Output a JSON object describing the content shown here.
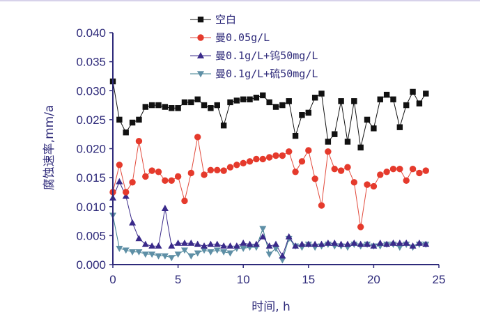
{
  "colors": {
    "axis": "#2e2a7a",
    "text": "#2e2a7a",
    "top_border": "#d7d2ea"
  },
  "chart_data": {
    "type": "line",
    "title": "",
    "xlabel": "时间, h",
    "ylabel": "腐蚀速率,mm/a",
    "xlim": [
      0,
      25
    ],
    "ylim": [
      0,
      0.04
    ],
    "x_ticks": [
      0,
      5,
      10,
      15,
      20,
      25
    ],
    "y_ticks": [
      0.0,
      0.005,
      0.01,
      0.015,
      0.02,
      0.025,
      0.03,
      0.035,
      0.04
    ],
    "x_tick_labels": [
      "0",
      "5",
      "10",
      "15",
      "20",
      "25"
    ],
    "y_tick_labels": [
      "0.000",
      "0.005",
      "0.010",
      "0.015",
      "0.020",
      "0.025",
      "0.030",
      "0.035",
      "0.040"
    ],
    "grid": false,
    "legend_position": "top-center",
    "series": [
      {
        "name": "空白",
        "marker": "square",
        "color": "#111111",
        "marker_color": "#111111",
        "x": [
          0,
          0.5,
          1,
          1.5,
          2,
          2.5,
          3,
          3.5,
          4,
          4.5,
          5,
          5.5,
          6,
          6.5,
          7,
          7.5,
          8,
          8.5,
          9,
          9.5,
          10,
          10.5,
          11,
          11.5,
          12,
          12.5,
          13,
          13.5,
          14,
          14.5,
          15,
          15.5,
          16,
          16.5,
          17,
          17.5,
          18,
          18.5,
          19,
          19.5,
          20,
          20.5,
          21,
          21.5,
          22,
          22.5,
          23,
          23.5,
          24
        ],
        "y": [
          0.0316,
          0.025,
          0.0228,
          0.0245,
          0.025,
          0.0272,
          0.0275,
          0.0275,
          0.0272,
          0.027,
          0.027,
          0.028,
          0.028,
          0.0285,
          0.0275,
          0.027,
          0.0275,
          0.024,
          0.028,
          0.0283,
          0.0285,
          0.0285,
          0.0288,
          0.0292,
          0.028,
          0.0272,
          0.0275,
          0.0282,
          0.0222,
          0.0258,
          0.0262,
          0.0288,
          0.0295,
          0.0212,
          0.0225,
          0.0282,
          0.0212,
          0.0282,
          0.0202,
          0.025,
          0.0235,
          0.0285,
          0.0293,
          0.0285,
          0.0237,
          0.0275,
          0.0298,
          0.0278,
          0.0295
        ]
      },
      {
        "name": "曼0.05g/L",
        "marker": "circle",
        "color": "#e24a3c",
        "marker_color": "#e53a2c",
        "x": [
          0,
          0.5,
          1,
          1.5,
          2,
          2.5,
          3,
          3.5,
          4,
          4.5,
          5,
          5.5,
          6,
          6.5,
          7,
          7.5,
          8,
          8.5,
          9,
          9.5,
          10,
          10.5,
          11,
          11.5,
          12,
          12.5,
          13,
          13.5,
          14,
          14.5,
          15,
          15.5,
          16,
          16.5,
          17,
          17.5,
          18,
          18.5,
          19,
          19.5,
          20,
          20.5,
          21,
          21.5,
          22,
          22.5,
          23,
          23.5,
          24
        ],
        "y": [
          0.0125,
          0.0172,
          0.0125,
          0.0142,
          0.0213,
          0.0152,
          0.0162,
          0.016,
          0.0145,
          0.0145,
          0.0152,
          0.011,
          0.0158,
          0.022,
          0.0155,
          0.0163,
          0.0163,
          0.0162,
          0.0168,
          0.0172,
          0.0175,
          0.0178,
          0.0182,
          0.0182,
          0.0185,
          0.0188,
          0.0188,
          0.0195,
          0.016,
          0.0178,
          0.0197,
          0.0148,
          0.0102,
          0.0195,
          0.0165,
          0.0162,
          0.0168,
          0.0142,
          0.0065,
          0.0138,
          0.0135,
          0.0155,
          0.016,
          0.0165,
          0.0165,
          0.0145,
          0.0165,
          0.0158,
          0.0162
        ]
      },
      {
        "name": "曼0.1g/L+钨50mg/L",
        "marker": "triangle-up",
        "color": "#3a2a8a",
        "marker_color": "#3a2a8a",
        "x": [
          0,
          0.5,
          1,
          1.5,
          2,
          2.5,
          3,
          3.5,
          4,
          4.5,
          5,
          5.5,
          6,
          6.5,
          7,
          7.5,
          8,
          8.5,
          9,
          9.5,
          10,
          10.5,
          11,
          11.5,
          12,
          12.5,
          13,
          13.5,
          14,
          14.5,
          15,
          15.5,
          16,
          16.5,
          17,
          17.5,
          18,
          18.5,
          19,
          19.5,
          20,
          20.5,
          21,
          21.5,
          22,
          22.5,
          23,
          23.5,
          24
        ],
        "y": [
          0.0115,
          0.0143,
          0.0118,
          0.0072,
          0.0045,
          0.0035,
          0.0032,
          0.0032,
          0.0097,
          0.0032,
          0.0037,
          0.0037,
          0.0037,
          0.0035,
          0.0032,
          0.0035,
          0.0035,
          0.0032,
          0.0032,
          0.0032,
          0.0037,
          0.0035,
          0.0035,
          0.0048,
          0.0032,
          0.0035,
          0.0015,
          0.0048,
          0.0032,
          0.0035,
          0.0035,
          0.0035,
          0.0035,
          0.0037,
          0.0037,
          0.0035,
          0.0035,
          0.0037,
          0.0035,
          0.0035,
          0.0032,
          0.0037,
          0.0035,
          0.0037,
          0.0037,
          0.0037,
          0.0032,
          0.0037,
          0.0035
        ]
      },
      {
        "name": "曼0.1g/L+硫50mg/L",
        "marker": "triangle-down",
        "color": "#3a7d8c",
        "marker_color": "#5e8fa6",
        "x": [
          0,
          0.5,
          1,
          1.5,
          2,
          2.5,
          3,
          3.5,
          4,
          4.5,
          5,
          5.5,
          6,
          6.5,
          7,
          7.5,
          8,
          8.5,
          9,
          9.5,
          10,
          10.5,
          11,
          11.5,
          12,
          12.5,
          13,
          13.5,
          14,
          14.5,
          15,
          15.5,
          16,
          16.5,
          17,
          17.5,
          18,
          18.5,
          19,
          19.5,
          20,
          20.5,
          21,
          21.5,
          22,
          22.5,
          23,
          23.5,
          24
        ],
        "y": [
          0.0085,
          0.0028,
          0.0025,
          0.0022,
          0.0022,
          0.0018,
          0.0018,
          0.0015,
          0.0015,
          0.0012,
          0.0018,
          0.0025,
          0.0015,
          0.002,
          0.0025,
          0.0022,
          0.0025,
          0.0022,
          0.002,
          0.0028,
          0.0028,
          0.003,
          0.003,
          0.0062,
          0.0018,
          0.0028,
          0.0008,
          0.0045,
          0.0032,
          0.003,
          0.0035,
          0.003,
          0.0032,
          0.0035,
          0.0032,
          0.0032,
          0.003,
          0.0035,
          0.0032,
          0.0035,
          0.0032,
          0.0032,
          0.0035,
          0.0035,
          0.003,
          0.0035,
          0.003,
          0.0035,
          0.0035
        ]
      }
    ]
  }
}
